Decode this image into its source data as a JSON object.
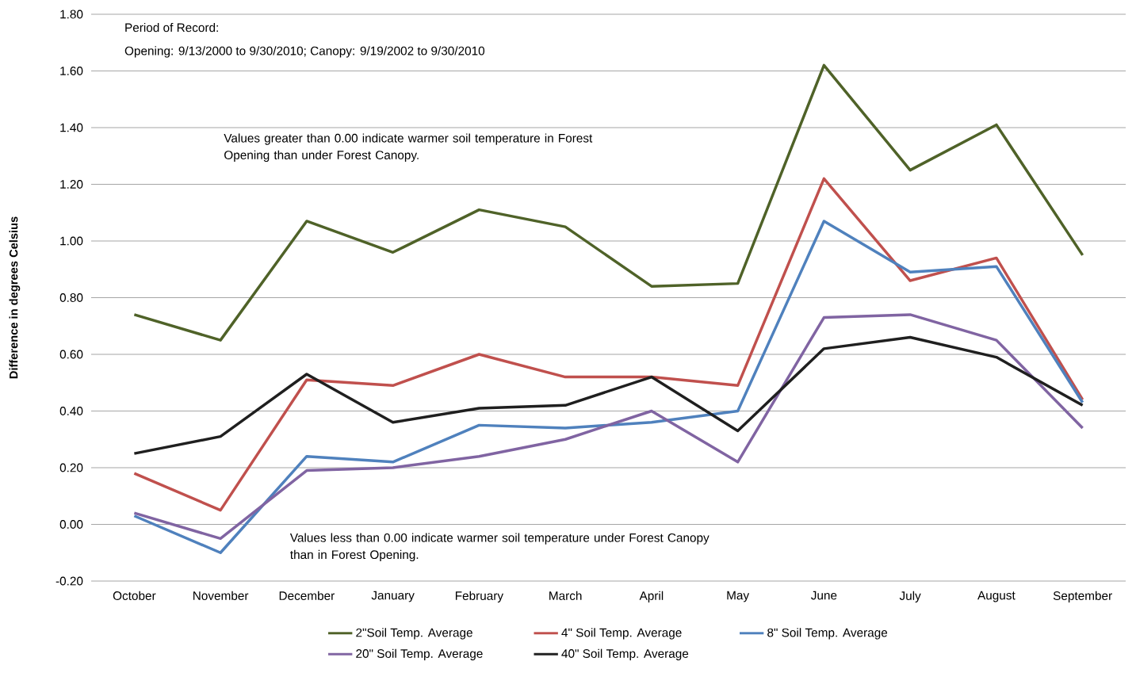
{
  "chart_data": {
    "type": "line",
    "ylabel": "Difference in degrees Celsius",
    "categories": [
      "October",
      "November",
      "December",
      "January",
      "February",
      "March",
      "April",
      "May",
      "June",
      "July",
      "August",
      "September"
    ],
    "series": [
      {
        "name": "2\"Soil Temp. Average",
        "color": "#4f6228",
        "values": [
          0.74,
          0.65,
          1.07,
          0.96,
          1.11,
          1.05,
          0.84,
          0.85,
          1.62,
          1.25,
          1.41,
          0.95
        ]
      },
      {
        "name": "4\" Soil Temp. Average",
        "color": "#c0504d",
        "values": [
          0.18,
          0.05,
          0.51,
          0.49,
          0.6,
          0.52,
          0.52,
          0.49,
          1.22,
          0.86,
          0.94,
          0.44
        ]
      },
      {
        "name": "8\" Soil Temp. Average",
        "color": "#4f81bd",
        "values": [
          0.03,
          -0.1,
          0.24,
          0.22,
          0.35,
          0.34,
          0.36,
          0.4,
          1.07,
          0.89,
          0.91,
          0.43
        ]
      },
      {
        "name": "20\" Soil Temp. Average",
        "color": "#8064a2",
        "values": [
          0.04,
          -0.05,
          0.19,
          0.2,
          0.24,
          0.3,
          0.4,
          0.22,
          0.73,
          0.74,
          0.65,
          0.34
        ]
      },
      {
        "name": "40\" Soil Temp. Average",
        "color": "#1f1f1f",
        "values": [
          0.25,
          0.31,
          0.53,
          0.36,
          0.41,
          0.42,
          0.52,
          0.33,
          0.62,
          0.66,
          0.59,
          0.42
        ]
      }
    ],
    "ylim": [
      -0.2,
      1.8
    ],
    "yticks": [
      {
        "value": -0.2,
        "label": "-0.20"
      },
      {
        "value": 0,
        "label": "0.00"
      },
      {
        "value": 0.2,
        "label": "0.20"
      },
      {
        "value": 0.4,
        "label": "0.40"
      },
      {
        "value": 0.6,
        "label": "0.60"
      },
      {
        "value": 0.8,
        "label": "0.80"
      },
      {
        "value": 1.0,
        "label": "1.00"
      },
      {
        "value": 1.2,
        "label": "1.20"
      },
      {
        "value": 1.4,
        "label": "1.40"
      },
      {
        "value": 1.6,
        "label": "1.60"
      },
      {
        "value": 1.8,
        "label": "1.80"
      }
    ],
    "grid": "y",
    "legend": "bottom",
    "annotations": [
      "Period of Record:",
      "Opening: 9/13/2000 to 9/30/2010; Canopy: 9/19/2002 to 9/30/2010",
      "Values greater than 0.00 indicate warmer soil temperature in Forest Opening than under Forest Canopy.",
      "Values less than 0.00 indicate warmer soil temperature under Forest Canopy than in Forest Opening."
    ]
  }
}
